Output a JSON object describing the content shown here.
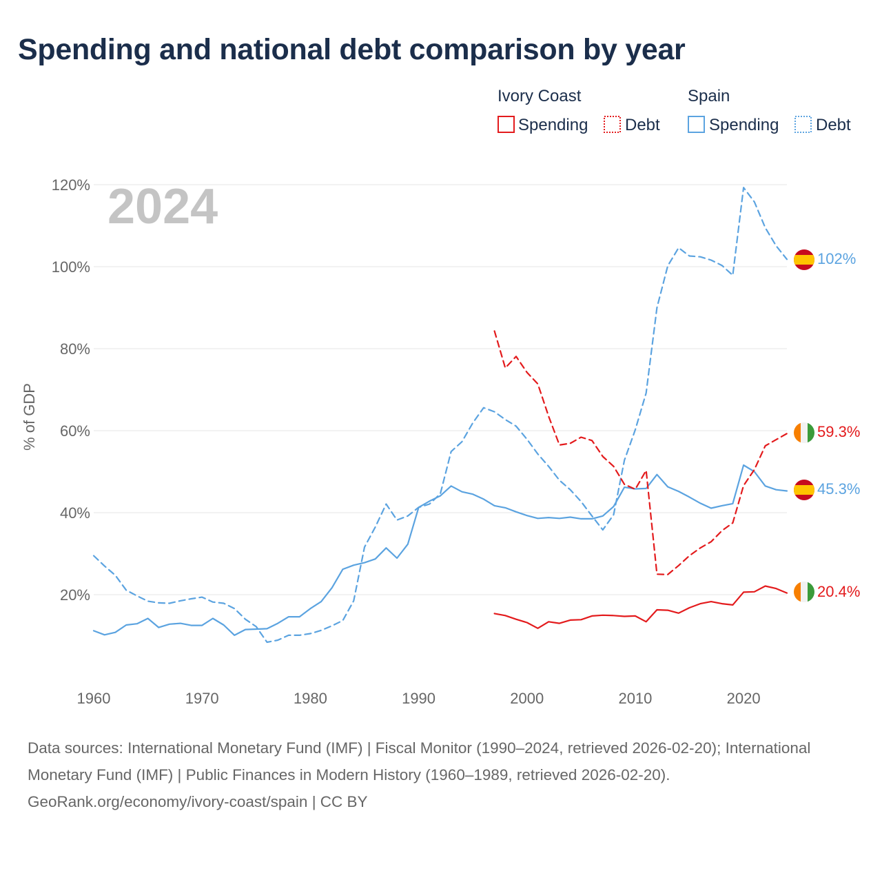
{
  "title": "Spending and national debt comparison by year",
  "chart_data": {
    "type": "line",
    "year_label": "2024",
    "ylabel": "% of GDP",
    "xlim": [
      1960,
      2024
    ],
    "ylim": [
      0,
      120
    ],
    "x_ticks": [
      1960,
      1970,
      1980,
      1990,
      2000,
      2010,
      2020
    ],
    "x_tick_labels": [
      "1960",
      "1970",
      "1980",
      "1990",
      "2000",
      "2010",
      "2020"
    ],
    "y_ticks": [
      20,
      40,
      60,
      80,
      100,
      120
    ],
    "y_tick_labels": [
      "20%",
      "40%",
      "60%",
      "80%",
      "100%",
      "120%"
    ],
    "grid": true,
    "legend": {
      "groups": [
        {
          "name": "Ivory Coast",
          "spending_label": "Spending",
          "debt_label": "Debt"
        },
        {
          "name": "Spain",
          "spending_label": "Spending",
          "debt_label": "Debt"
        }
      ]
    },
    "colors": {
      "ivory_coast": "#e31a1c",
      "spain": "#5ba3e0"
    },
    "series": [
      {
        "name": "Spain Spending",
        "country": "Spain",
        "kind": "Spending",
        "style": "solid",
        "end_label": "45.3%",
        "x": [
          1960,
          1961,
          1962,
          1963,
          1964,
          1965,
          1966,
          1967,
          1968,
          1969,
          1970,
          1971,
          1972,
          1973,
          1974,
          1975,
          1976,
          1977,
          1978,
          1979,
          1980,
          1981,
          1982,
          1983,
          1984,
          1985,
          1986,
          1987,
          1988,
          1989,
          1990,
          1991,
          1992,
          1993,
          1994,
          1995,
          1996,
          1997,
          1998,
          1999,
          2000,
          2001,
          2002,
          2003,
          2004,
          2005,
          2006,
          2007,
          2008,
          2009,
          2010,
          2011,
          2012,
          2013,
          2014,
          2015,
          2016,
          2017,
          2018,
          2019,
          2020,
          2021,
          2022,
          2023,
          2024
        ],
        "y": [
          11.2,
          10.2,
          10.8,
          12.6,
          12.9,
          14.2,
          12.0,
          12.8,
          13.0,
          12.5,
          12.5,
          14.2,
          12.6,
          10.1,
          11.5,
          11.6,
          11.7,
          13.0,
          14.6,
          14.6,
          16.6,
          18.3,
          21.7,
          26.2,
          27.2,
          27.8,
          28.7,
          31.4,
          28.9,
          32.3,
          41.3,
          42.8,
          44.1,
          46.5,
          45.1,
          44.5,
          43.3,
          41.7,
          41.2,
          40.2,
          39.3,
          38.6,
          38.8,
          38.6,
          38.9,
          38.5,
          38.5,
          39.2,
          41.5,
          46.2,
          45.8,
          45.9,
          49.3,
          46.3,
          45.2,
          43.8,
          42.3,
          41.1,
          41.7,
          42.2,
          51.6,
          50.0,
          46.5,
          45.6,
          45.3
        ]
      },
      {
        "name": "Spain Debt",
        "country": "Spain",
        "kind": "Debt",
        "style": "dashed",
        "end_label": "102%",
        "x": [
          1960,
          1961,
          1962,
          1963,
          1964,
          1965,
          1966,
          1967,
          1968,
          1969,
          1970,
          1971,
          1972,
          1973,
          1974,
          1975,
          1976,
          1977,
          1978,
          1979,
          1980,
          1981,
          1982,
          1983,
          1984,
          1985,
          1986,
          1987,
          1988,
          1989,
          1990,
          1991,
          1992,
          1993,
          1994,
          1995,
          1996,
          1997,
          1998,
          1999,
          2000,
          2001,
          2002,
          2003,
          2004,
          2005,
          2006,
          2007,
          2008,
          2009,
          2010,
          2011,
          2012,
          2013,
          2014,
          2015,
          2016,
          2017,
          2018,
          2019,
          2020,
          2021,
          2022,
          2023,
          2024
        ],
        "y": [
          29.5,
          27.0,
          24.7,
          21.1,
          19.7,
          18.4,
          18.0,
          17.9,
          18.5,
          19.0,
          19.4,
          18.2,
          17.9,
          16.6,
          14.0,
          12.2,
          8.4,
          8.9,
          10.1,
          10.1,
          10.5,
          11.3,
          12.4,
          13.7,
          18.5,
          31.6,
          36.5,
          42.1,
          38.2,
          39.2,
          41.3,
          42.1,
          44.6,
          54.9,
          57.3,
          61.9,
          65.6,
          64.6,
          62.7,
          61.1,
          57.9,
          54.3,
          51.3,
          47.9,
          45.6,
          42.7,
          39.2,
          35.8,
          39.5,
          52.8,
          60.2,
          69.2,
          90.0,
          100.2,
          104.6,
          102.6,
          102.4,
          101.6,
          100.3,
          97.9,
          119.3,
          115.8,
          109.5,
          105.1,
          101.8
        ]
      },
      {
        "name": "Ivory Coast Spending",
        "country": "Ivory Coast",
        "kind": "Spending",
        "style": "solid",
        "end_label": "20.4%",
        "x": [
          1997,
          1998,
          1999,
          2000,
          2001,
          2002,
          2003,
          2004,
          2005,
          2006,
          2007,
          2008,
          2009,
          2010,
          2011,
          2012,
          2013,
          2014,
          2015,
          2016,
          2017,
          2018,
          2019,
          2020,
          2021,
          2022,
          2023,
          2024
        ],
        "y": [
          15.4,
          14.9,
          14.0,
          13.2,
          11.8,
          13.4,
          13.0,
          13.8,
          13.9,
          14.8,
          15.0,
          14.9,
          14.7,
          14.8,
          13.4,
          16.3,
          16.2,
          15.5,
          16.8,
          17.8,
          18.3,
          17.8,
          17.5,
          20.6,
          20.7,
          22.1,
          21.5,
          20.4
        ]
      },
      {
        "name": "Ivory Coast Debt",
        "country": "Ivory Coast",
        "kind": "Debt",
        "style": "dashed",
        "end_label": "59.3%",
        "x": [
          1997,
          1998,
          1999,
          2000,
          2001,
          2002,
          2003,
          2004,
          2005,
          2006,
          2007,
          2008,
          2009,
          2010,
          2011,
          2012,
          2013,
          2014,
          2015,
          2016,
          2017,
          2018,
          2019,
          2020,
          2021,
          2022,
          2023,
          2024
        ],
        "y": [
          84.3,
          75.3,
          78.1,
          74.2,
          71.4,
          63.5,
          56.5,
          56.9,
          58.4,
          57.6,
          53.7,
          51.3,
          46.9,
          45.7,
          50.3,
          25.0,
          24.9,
          27.1,
          29.5,
          31.4,
          32.9,
          35.6,
          37.5,
          46.6,
          50.5,
          56.3,
          57.8,
          59.3
        ]
      }
    ]
  },
  "footer": {
    "sources": "Data sources: International Monetary Fund (IMF) | Fiscal Monitor (1990–2024, retrieved 2026-02-20); International Monetary Fund (IMF) | Public Finances in Modern History (1960–1989, retrieved 2026-02-20).",
    "credit": "GeoRank.org/economy/ivory-coast/spain | CC BY"
  }
}
